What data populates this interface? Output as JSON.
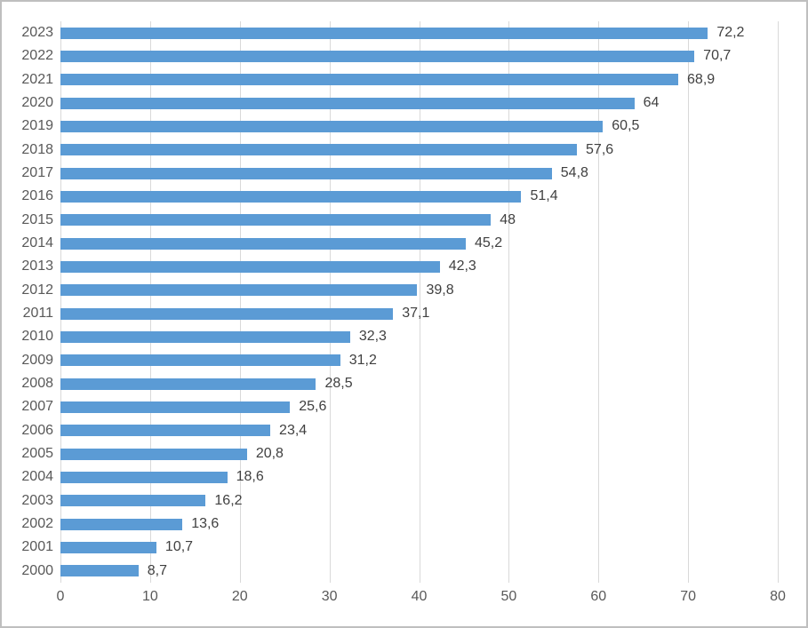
{
  "chart_data": {
    "type": "bar",
    "orientation": "horizontal",
    "title": "",
    "xlabel": "",
    "ylabel": "",
    "categories": [
      "2023",
      "2022",
      "2021",
      "2020",
      "2019",
      "2018",
      "2017",
      "2016",
      "2015",
      "2014",
      "2013",
      "2012",
      "2011",
      "2010",
      "2009",
      "2008",
      "2007",
      "2006",
      "2005",
      "2004",
      "2003",
      "2002",
      "2001",
      "2000"
    ],
    "values": [
      72.2,
      70.7,
      68.9,
      64,
      60.5,
      57.6,
      54.8,
      51.4,
      48,
      45.2,
      42.3,
      39.8,
      37.1,
      32.3,
      31.2,
      28.5,
      25.6,
      23.4,
      20.8,
      18.6,
      16.2,
      13.6,
      10.7,
      8.7
    ],
    "value_labels": [
      "72,2",
      "70,7",
      "68,9",
      "64",
      "60,5",
      "57,6",
      "54,8",
      "51,4",
      "48",
      "45,2",
      "42,3",
      "39,8",
      "37,1",
      "32,3",
      "31,2",
      "28,5",
      "25,6",
      "23,4",
      "20,8",
      "18,6",
      "16,2",
      "13,6",
      "10,7",
      "8,7"
    ],
    "xlim": [
      0,
      80
    ],
    "x_ticks": [
      0,
      10,
      20,
      30,
      40,
      50,
      60,
      70,
      80
    ],
    "grid": true,
    "legend": false,
    "decimal_separator": ",",
    "colors": {
      "bar": "#5b9bd5",
      "gridline": "#d9d9d9",
      "axis_line": "#d9d9d9",
      "tick_label": "#595959",
      "data_label": "#404040",
      "frame_border": "#bfbfbf",
      "background": "#ffffff"
    }
  }
}
